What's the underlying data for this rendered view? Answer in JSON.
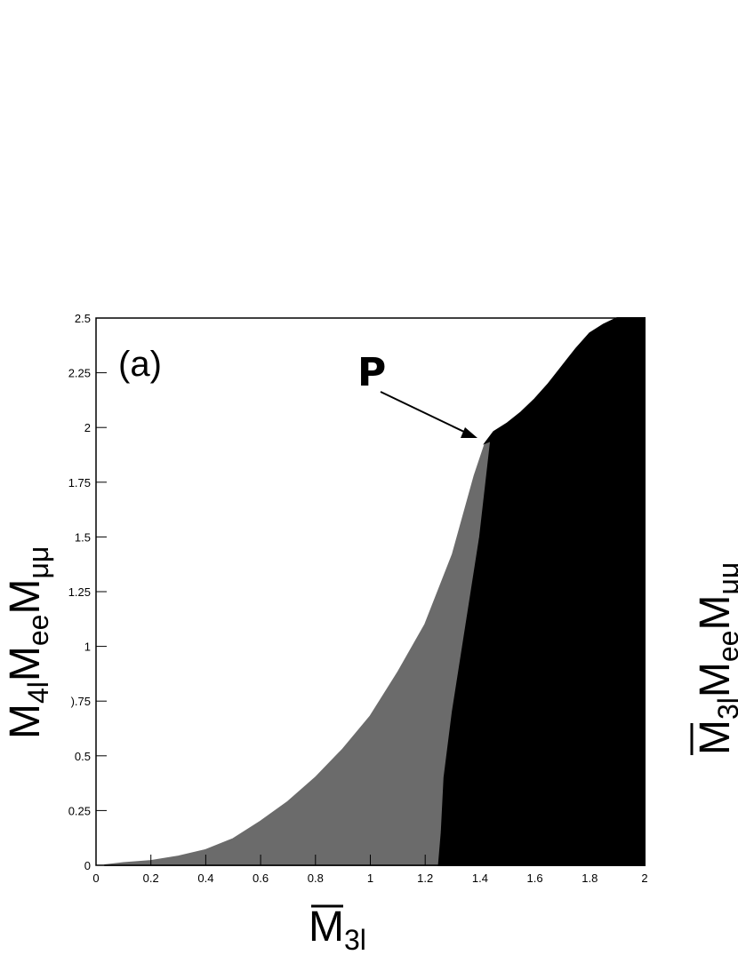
{
  "chart_data": {
    "type": "scatter",
    "panel_label": "(a)",
    "annotation": {
      "text": "P",
      "x": 1.4,
      "y": 1.93
    },
    "xlabel": {
      "main": "M",
      "sub": "3l",
      "overline": true
    },
    "ylabel": {
      "parts": [
        {
          "main": "M",
          "sub": "4l"
        },
        {
          "main": "M",
          "sub": "ee"
        },
        {
          "main": "M",
          "sub": "μμ"
        }
      ]
    },
    "right_panel_ylabel": {
      "parts": [
        {
          "main": "M",
          "sub": "3l",
          "overline": true
        },
        {
          "main": "M",
          "sub": "ee"
        },
        {
          "main": "M",
          "sub": "μμ"
        }
      ]
    },
    "xlim": [
      0,
      2
    ],
    "ylim": [
      0,
      2.5
    ],
    "x_ticks": [
      {
        "value": 0,
        "label": "0"
      },
      {
        "value": 0.2,
        "label": "0.2"
      },
      {
        "value": 0.4,
        "label": "0.4"
      },
      {
        "value": 0.6,
        "label": "0.6"
      },
      {
        "value": 0.8,
        "label": "0.8"
      },
      {
        "value": 1,
        "label": "1"
      },
      {
        "value": 1.2,
        "label": "1.2"
      },
      {
        "value": 1.4,
        "label": "1.4"
      },
      {
        "value": 1.6,
        "label": "1.6"
      },
      {
        "value": 1.8,
        "label": "1.8"
      },
      {
        "value": 2,
        "label": "2"
      }
    ],
    "y_ticks": [
      {
        "value": 0,
        "label": "0"
      },
      {
        "value": 0.25,
        "label": "0.25"
      },
      {
        "value": 0.5,
        "label": "0.5"
      },
      {
        "value": 0.75,
        "label": ").75"
      },
      {
        "value": 1,
        "label": "1"
      },
      {
        "value": 1.25,
        "label": "1.25"
      },
      {
        "value": 1.5,
        "label": "1.5"
      },
      {
        "value": 1.75,
        "label": "1.75"
      },
      {
        "value": 2,
        "label": "2"
      },
      {
        "value": 2.25,
        "label": "2.25"
      },
      {
        "value": 2.5,
        "label": "2.5"
      }
    ],
    "series": [
      {
        "color": "#6b6b6b",
        "upper_boundary": [
          [
            0.03,
            0
          ],
          [
            0.1,
            0.01
          ],
          [
            0.2,
            0.02
          ],
          [
            0.3,
            0.04
          ],
          [
            0.4,
            0.07
          ],
          [
            0.5,
            0.12
          ],
          [
            0.6,
            0.2
          ],
          [
            0.7,
            0.29
          ],
          [
            0.8,
            0.4
          ],
          [
            0.9,
            0.53
          ],
          [
            1.0,
            0.68
          ],
          [
            1.1,
            0.88
          ],
          [
            1.2,
            1.1
          ],
          [
            1.3,
            1.42
          ],
          [
            1.38,
            1.78
          ],
          [
            1.42,
            1.93
          ]
        ],
        "lower_boundary": [
          [
            1.44,
            1.94
          ],
          [
            1.4,
            1.5
          ],
          [
            1.35,
            1.1
          ],
          [
            1.3,
            0.7
          ],
          [
            1.27,
            0.4
          ],
          [
            1.26,
            0.15
          ],
          [
            1.25,
            0
          ],
          [
            0.9,
            0
          ],
          [
            0.5,
            0
          ],
          [
            0.1,
            0
          ]
        ]
      },
      {
        "color": "#000000",
        "upper_boundary": [
          [
            1.42,
            1.93
          ],
          [
            1.45,
            1.98
          ],
          [
            1.5,
            2.02
          ],
          [
            1.55,
            2.07
          ],
          [
            1.6,
            2.13
          ],
          [
            1.65,
            2.2
          ],
          [
            1.7,
            2.28
          ],
          [
            1.75,
            2.36
          ],
          [
            1.8,
            2.43
          ],
          [
            1.85,
            2.47
          ],
          [
            1.9,
            2.5
          ],
          [
            2.0,
            2.5
          ]
        ],
        "lower_boundary": [
          [
            2.0,
            0
          ],
          [
            1.25,
            0
          ],
          [
            1.26,
            0.15
          ],
          [
            1.27,
            0.4
          ],
          [
            1.3,
            0.7
          ],
          [
            1.35,
            1.1
          ],
          [
            1.4,
            1.5
          ],
          [
            1.44,
            1.94
          ]
        ]
      }
    ]
  }
}
